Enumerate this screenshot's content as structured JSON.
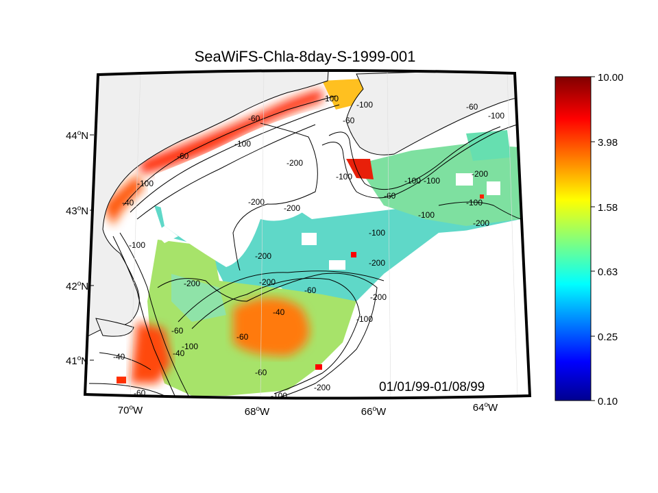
{
  "title": "SeaWiFS-Chla-8day-S-1999-001",
  "date_range": "01/01/99-01/08/99",
  "map": {
    "lon_ticks": [
      {
        "deg": "70",
        "hemi": "W"
      },
      {
        "deg": "68",
        "hemi": "W"
      },
      {
        "deg": "66",
        "hemi": "W"
      },
      {
        "deg": "64",
        "hemi": "W"
      }
    ],
    "lat_ticks": [
      {
        "deg": "44",
        "hemi": "N"
      },
      {
        "deg": "43",
        "hemi": "N"
      },
      {
        "deg": "42",
        "hemi": "N"
      },
      {
        "deg": "41",
        "hemi": "N"
      }
    ],
    "contour_labels": [
      "-40",
      "-60",
      "-100",
      "-200"
    ],
    "colors": {
      "land": "#efefef",
      "no_data": "#ffffff",
      "frame": "#000000"
    }
  },
  "colorbar": {
    "ticks": [
      "10.00",
      "3.98",
      "1.58",
      "0.63",
      "0.25",
      "0.10"
    ],
    "scale": "log",
    "colormap": "jet"
  }
}
